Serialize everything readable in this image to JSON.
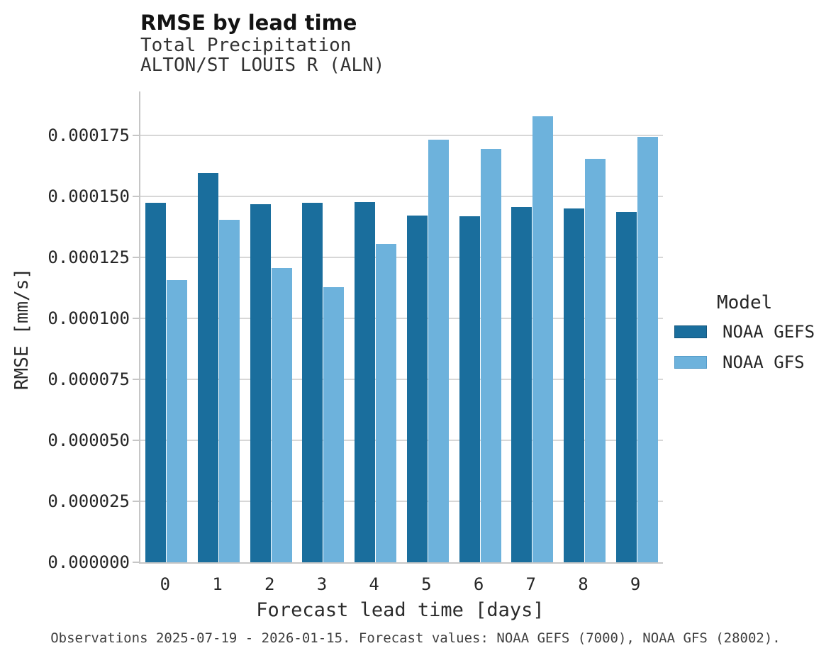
{
  "header": {
    "title": "RMSE by lead time",
    "subtitle_variable": "Total Precipitation",
    "subtitle_station": "ALTON/ST LOUIS R (ALN)"
  },
  "legend": {
    "title": "Model",
    "entries": [
      {
        "label": "NOAA GEFS",
        "color": "#1a6e9d",
        "edge_color": "#14567c"
      },
      {
        "label": "NOAA GFS",
        "color": "#6db2dc",
        "edge_color": "#549bc9"
      }
    ]
  },
  "footer": {
    "caption": "Observations 2025-07-19 - 2026-01-15. Forecast values: NOAA GEFS (7000), NOAA GFS (28002)."
  },
  "colors": {
    "gefs_bar": "#1a6e9d",
    "gfs_bar": "#6db2dc",
    "gridline": "#d7d7d7",
    "spine": "#c6c6c6"
  },
  "chart_data": {
    "type": "bar",
    "title": "RMSE by lead time",
    "subtitle": [
      "Total Precipitation",
      "ALTON/ST LOUIS R (ALN)"
    ],
    "xlabel": "Forecast lead time [days]",
    "ylabel": "RMSE [mm/s]",
    "categories": [
      "0",
      "1",
      "2",
      "3",
      "4",
      "5",
      "6",
      "7",
      "8",
      "9"
    ],
    "series": [
      {
        "name": "NOAA GEFS",
        "color": "#1a6e9d",
        "values": [
          0.0001475,
          0.0001595,
          0.0001468,
          0.0001475,
          0.0001476,
          0.0001422,
          0.0001418,
          0.0001457,
          0.000145,
          0.0001435
        ]
      },
      {
        "name": "NOAA GFS",
        "color": "#6db2dc",
        "values": [
          0.0001158,
          0.0001405,
          0.0001207,
          0.0001128,
          0.0001304,
          0.0001733,
          0.0001694,
          0.0001829,
          0.0001654,
          0.0001745
        ]
      }
    ],
    "ylim": [
      0,
      0.000193
    ],
    "y_tick_step": 2.5e-05,
    "y_tick_max": 0.000175,
    "y_tick_labels": [
      "0.000000",
      "0.000025",
      "0.000050",
      "0.000075",
      "0.000100",
      "0.000125",
      "0.000150",
      "0.000175"
    ],
    "grid": true,
    "legend_title": "Model",
    "legend_position": "center-right"
  }
}
